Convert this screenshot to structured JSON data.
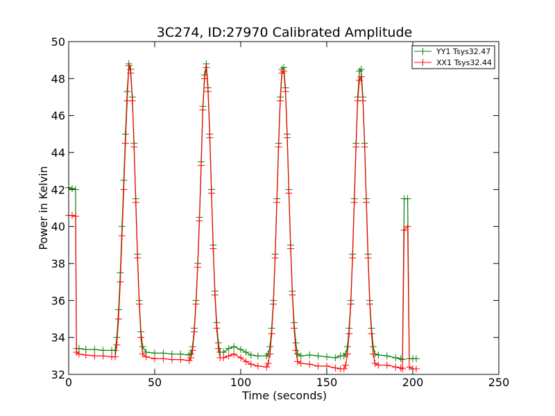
{
  "chart_data": {
    "type": "line",
    "title": "3C274, ID:27970 Calibrated Amplitude",
    "xlabel": "Time (seconds)",
    "ylabel": "Power in Kelvin",
    "xlim": [
      0,
      250
    ],
    "ylim": [
      32,
      50
    ],
    "xticks": [
      0,
      50,
      100,
      150,
      200,
      250
    ],
    "yticks": [
      32,
      34,
      36,
      38,
      40,
      42,
      44,
      46,
      48,
      50
    ],
    "grid": false,
    "legend_position": "top-right",
    "marker": "+",
    "series": [
      {
        "name": "YY1 Tsys32.47",
        "color": "#008000",
        "points": [
          [
            0,
            42.1
          ],
          [
            2,
            42.05
          ],
          [
            4,
            42.0
          ],
          [
            4.5,
            33.4
          ],
          [
            6,
            33.4
          ],
          [
            10,
            33.35
          ],
          [
            15,
            33.35
          ],
          [
            20,
            33.3
          ],
          [
            25,
            33.3
          ],
          [
            27,
            33.3
          ],
          [
            28,
            34.0
          ],
          [
            29,
            35.5
          ],
          [
            30,
            37.5
          ],
          [
            31,
            40.0
          ],
          [
            32,
            42.5
          ],
          [
            33,
            45.0
          ],
          [
            34,
            47.3
          ],
          [
            35,
            48.8
          ],
          [
            36,
            48.5
          ],
          [
            37,
            47.0
          ],
          [
            38,
            44.5
          ],
          [
            39,
            41.5
          ],
          [
            40,
            38.5
          ],
          [
            41,
            36.0
          ],
          [
            42,
            34.3
          ],
          [
            43,
            33.5
          ],
          [
            45,
            33.2
          ],
          [
            50,
            33.15
          ],
          [
            55,
            33.15
          ],
          [
            60,
            33.1
          ],
          [
            65,
            33.1
          ],
          [
            70,
            33.05
          ],
          [
            71,
            33.1
          ],
          [
            72,
            33.5
          ],
          [
            73,
            34.5
          ],
          [
            74,
            36.0
          ],
          [
            75,
            38.0
          ],
          [
            76,
            40.5
          ],
          [
            77,
            43.5
          ],
          [
            78,
            46.5
          ],
          [
            79,
            48.2
          ],
          [
            80,
            48.8
          ],
          [
            81,
            47.5
          ],
          [
            82,
            45.0
          ],
          [
            83,
            42.0
          ],
          [
            84,
            39.0
          ],
          [
            85,
            36.5
          ],
          [
            86,
            34.8
          ],
          [
            87,
            33.7
          ],
          [
            88,
            33.2
          ],
          [
            90,
            33.2
          ],
          [
            93,
            33.4
          ],
          [
            96,
            33.5
          ],
          [
            100,
            33.35
          ],
          [
            103,
            33.2
          ],
          [
            106,
            33.05
          ],
          [
            110,
            33.0
          ],
          [
            115,
            33.0
          ],
          [
            116,
            33.1
          ],
          [
            117,
            33.5
          ],
          [
            118,
            34.5
          ],
          [
            119,
            36.0
          ],
          [
            120,
            38.5
          ],
          [
            121,
            41.5
          ],
          [
            122,
            44.5
          ],
          [
            123,
            47.0
          ],
          [
            124,
            48.5
          ],
          [
            125,
            48.6
          ],
          [
            126,
            47.5
          ],
          [
            127,
            45.0
          ],
          [
            128,
            42.0
          ],
          [
            129,
            39.0
          ],
          [
            130,
            36.5
          ],
          [
            131,
            34.8
          ],
          [
            132,
            33.7
          ],
          [
            133,
            33.1
          ],
          [
            135,
            33.0
          ],
          [
            140,
            33.05
          ],
          [
            145,
            33.0
          ],
          [
            150,
            32.95
          ],
          [
            155,
            32.9
          ],
          [
            158,
            33.0
          ],
          [
            160,
            33.0
          ],
          [
            161,
            33.1
          ],
          [
            162,
            33.5
          ],
          [
            163,
            34.5
          ],
          [
            164,
            36.0
          ],
          [
            165,
            38.5
          ],
          [
            166,
            41.5
          ],
          [
            167,
            44.5
          ],
          [
            168,
            47.0
          ],
          [
            169,
            48.4
          ],
          [
            170,
            48.5
          ],
          [
            171,
            47.0
          ],
          [
            172,
            44.5
          ],
          [
            173,
            41.5
          ],
          [
            174,
            38.5
          ],
          [
            175,
            36.0
          ],
          [
            176,
            34.5
          ],
          [
            177,
            33.5
          ],
          [
            178,
            33.1
          ],
          [
            180,
            33.05
          ],
          [
            185,
            33.0
          ],
          [
            190,
            32.9
          ],
          [
            193,
            32.85
          ],
          [
            194,
            32.8
          ],
          [
            195,
            41.5
          ],
          [
            197,
            41.5
          ],
          [
            198,
            32.85
          ],
          [
            200,
            32.85
          ],
          [
            202,
            32.85
          ]
        ]
      },
      {
        "name": "XX1 Tsys32.44",
        "color": "#ff0000",
        "points": [
          [
            0,
            40.6
          ],
          [
            2,
            40.6
          ],
          [
            4,
            40.55
          ],
          [
            4.5,
            33.2
          ],
          [
            6,
            33.1
          ],
          [
            10,
            33.05
          ],
          [
            15,
            33.0
          ],
          [
            20,
            33.0
          ],
          [
            25,
            32.95
          ],
          [
            27,
            32.95
          ],
          [
            28,
            33.6
          ],
          [
            29,
            35.0
          ],
          [
            30,
            37.0
          ],
          [
            31,
            39.5
          ],
          [
            32,
            42.0
          ],
          [
            33,
            44.5
          ],
          [
            34,
            46.8
          ],
          [
            35,
            48.7
          ],
          [
            36,
            48.3
          ],
          [
            37,
            46.8
          ],
          [
            38,
            44.3
          ],
          [
            39,
            41.3
          ],
          [
            40,
            38.3
          ],
          [
            41,
            35.8
          ],
          [
            42,
            34.0
          ],
          [
            43,
            33.1
          ],
          [
            45,
            32.95
          ],
          [
            50,
            32.85
          ],
          [
            55,
            32.85
          ],
          [
            60,
            32.8
          ],
          [
            65,
            32.8
          ],
          [
            70,
            32.75
          ],
          [
            71,
            32.9
          ],
          [
            72,
            33.3
          ],
          [
            73,
            34.3
          ],
          [
            74,
            35.8
          ],
          [
            75,
            37.8
          ],
          [
            76,
            40.3
          ],
          [
            77,
            43.3
          ],
          [
            78,
            46.3
          ],
          [
            79,
            48.0
          ],
          [
            80,
            48.6
          ],
          [
            81,
            47.3
          ],
          [
            82,
            44.8
          ],
          [
            83,
            41.8
          ],
          [
            84,
            38.8
          ],
          [
            85,
            36.3
          ],
          [
            86,
            34.5
          ],
          [
            87,
            33.4
          ],
          [
            88,
            32.9
          ],
          [
            90,
            32.9
          ],
          [
            93,
            33.0
          ],
          [
            96,
            33.1
          ],
          [
            100,
            32.9
          ],
          [
            103,
            32.7
          ],
          [
            106,
            32.55
          ],
          [
            110,
            32.45
          ],
          [
            115,
            32.4
          ],
          [
            116,
            32.6
          ],
          [
            117,
            33.1
          ],
          [
            118,
            34.2
          ],
          [
            119,
            35.8
          ],
          [
            120,
            38.3
          ],
          [
            121,
            41.3
          ],
          [
            122,
            44.3
          ],
          [
            123,
            46.8
          ],
          [
            124,
            48.3
          ],
          [
            125,
            48.4
          ],
          [
            126,
            47.3
          ],
          [
            127,
            44.8
          ],
          [
            128,
            41.8
          ],
          [
            129,
            38.8
          ],
          [
            130,
            36.3
          ],
          [
            131,
            34.5
          ],
          [
            132,
            33.3
          ],
          [
            133,
            32.7
          ],
          [
            135,
            32.6
          ],
          [
            140,
            32.55
          ],
          [
            145,
            32.45
          ],
          [
            150,
            32.45
          ],
          [
            155,
            32.35
          ],
          [
            158,
            32.3
          ],
          [
            160,
            32.3
          ],
          [
            161,
            32.5
          ],
          [
            162,
            33.1
          ],
          [
            163,
            34.2
          ],
          [
            164,
            35.8
          ],
          [
            165,
            38.3
          ],
          [
            166,
            41.3
          ],
          [
            167,
            44.3
          ],
          [
            168,
            46.8
          ],
          [
            169,
            47.9
          ],
          [
            170,
            48.1
          ],
          [
            171,
            46.8
          ],
          [
            172,
            44.3
          ],
          [
            173,
            41.3
          ],
          [
            174,
            38.3
          ],
          [
            175,
            35.8
          ],
          [
            176,
            34.2
          ],
          [
            177,
            33.1
          ],
          [
            178,
            32.6
          ],
          [
            180,
            32.5
          ],
          [
            185,
            32.5
          ],
          [
            190,
            32.4
          ],
          [
            193,
            32.35
          ],
          [
            194,
            32.3
          ],
          [
            195,
            39.8
          ],
          [
            197,
            40.0
          ],
          [
            198,
            32.4
          ],
          [
            200,
            32.3
          ],
          [
            202,
            32.3
          ]
        ]
      }
    ]
  }
}
